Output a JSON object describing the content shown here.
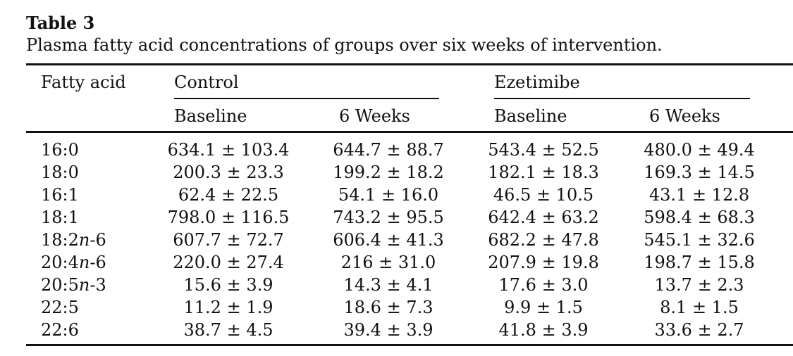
{
  "table": {
    "label": "Table 3",
    "caption": "Plasma fatty acid concentrations of groups over six weeks of intervention.",
    "stub_header": "Fatty acid",
    "groups": [
      "Control",
      "Ezetimibe"
    ],
    "subheaders": [
      "Baseline",
      "6 Weeks",
      "Baseline",
      "6 Weeks"
    ],
    "rows": [
      {
        "fatty_acid": "16:0",
        "values": [
          "634.1 ± 103.4",
          "644.7 ± 88.7",
          "543.4 ± 52.5",
          "480.0 ± 49.4"
        ]
      },
      {
        "fatty_acid": "18:0",
        "values": [
          "200.3 ± 23.3",
          "199.2 ± 18.2",
          "182.1 ± 18.3",
          "169.3 ± 14.5"
        ]
      },
      {
        "fatty_acid": "16:1",
        "values": [
          "62.4 ± 22.5",
          "54.1 ± 16.0",
          "46.5 ± 10.5",
          "43.1 ± 12.8"
        ]
      },
      {
        "fatty_acid": "18:1",
        "values": [
          "798.0 ± 116.5",
          "743.2 ± 95.5",
          "642.4 ± 63.2",
          "598.4 ± 68.3"
        ]
      },
      {
        "fatty_acid": "18:2n-6",
        "values": [
          "607.7 ± 72.7",
          "606.4 ± 41.3",
          "682.2 ± 47.8",
          "545.1 ± 32.6"
        ]
      },
      {
        "fatty_acid": "20:4n-6",
        "values": [
          "220.0 ± 27.4",
          "216 ± 31.0",
          "207.9 ± 19.8",
          "198.7 ± 15.8"
        ]
      },
      {
        "fatty_acid": "20:5n-3",
        "values": [
          "15.6 ± 3.9",
          "14.3 ± 4.1",
          "17.6 ± 3.0",
          "13.7 ± 2.3"
        ]
      },
      {
        "fatty_acid": "22:5",
        "values": [
          "11.2 ± 1.9",
          "18.6 ± 7.3",
          "9.9 ± 1.5",
          "8.1 ± 1.5"
        ]
      },
      {
        "fatty_acid": "22:6",
        "values": [
          "38.7 ± 4.5",
          "39.4 ± 3.9",
          "41.8 ± 3.9",
          "33.6 ± 2.7"
        ]
      }
    ]
  }
}
